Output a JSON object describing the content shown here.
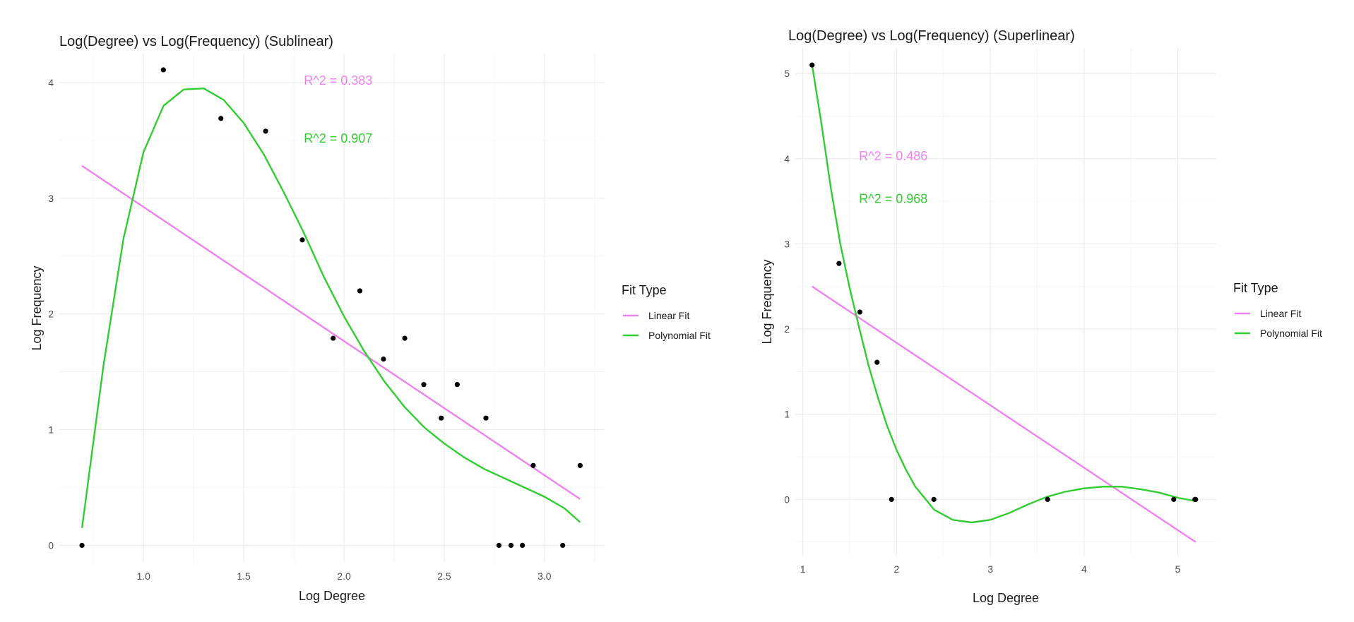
{
  "colors": {
    "linear": "#EE82EE",
    "polynomial": "#32CD32",
    "points": "#000000"
  },
  "chart_data": [
    {
      "type": "scatter",
      "title": "Log(Degree) vs Log(Frequency) (Sublinear)",
      "xlabel": "Log Degree",
      "ylabel": "Log Frequency",
      "xlim": [
        0.58,
        3.3
      ],
      "ylim": [
        -0.15,
        4.25
      ],
      "x_ticks": [
        1.0,
        1.5,
        2.0,
        2.5,
        3.0
      ],
      "x_tick_labels": [
        "1.0",
        "1.5",
        "2.0",
        "2.5",
        "3.0"
      ],
      "y_ticks": [
        0,
        1,
        2,
        3,
        4
      ],
      "y_tick_labels": [
        "0",
        "1",
        "2",
        "3",
        "4"
      ],
      "grid": true,
      "legend_position": "right",
      "legend": {
        "title": "Fit Type",
        "entries": [
          "Linear Fit",
          "Polynomial Fit"
        ]
      },
      "points": [
        [
          0.693,
          0.0
        ],
        [
          1.099,
          4.11
        ],
        [
          1.386,
          3.69
        ],
        [
          1.609,
          3.58
        ],
        [
          1.792,
          2.64
        ],
        [
          1.946,
          1.79
        ],
        [
          2.079,
          2.2
        ],
        [
          2.197,
          1.61
        ],
        [
          2.303,
          1.79
        ],
        [
          2.398,
          1.39
        ],
        [
          2.485,
          1.1
        ],
        [
          2.565,
          1.39
        ],
        [
          2.708,
          1.1
        ],
        [
          2.773,
          0.0
        ],
        [
          2.833,
          0.0
        ],
        [
          2.89,
          0.0
        ],
        [
          2.944,
          0.69
        ],
        [
          3.091,
          0.0
        ],
        [
          3.178,
          0.69
        ]
      ],
      "series": [
        {
          "name": "Linear Fit",
          "x": [
            0.693,
            3.178
          ],
          "y": [
            3.28,
            0.4
          ]
        },
        {
          "name": "Polynomial Fit",
          "x": [
            0.693,
            0.8,
            0.9,
            1.0,
            1.1,
            1.2,
            1.3,
            1.4,
            1.5,
            1.6,
            1.7,
            1.8,
            1.9,
            2.0,
            2.1,
            2.2,
            2.3,
            2.4,
            2.5,
            2.6,
            2.7,
            2.8,
            2.9,
            3.0,
            3.1,
            3.178
          ],
          "y": [
            0.15,
            1.55,
            2.65,
            3.4,
            3.8,
            3.94,
            3.95,
            3.85,
            3.65,
            3.38,
            3.05,
            2.7,
            2.32,
            1.98,
            1.68,
            1.42,
            1.2,
            1.02,
            0.88,
            0.76,
            0.66,
            0.58,
            0.5,
            0.42,
            0.32,
            0.2
          ]
        }
      ],
      "annotations": [
        {
          "text": "R^2 =  0.383",
          "x": 1.8,
          "y": 3.98,
          "series": "Linear Fit"
        },
        {
          "text": "R^2 =  0.907",
          "x": 1.8,
          "y": 3.48,
          "series": "Polynomial Fit"
        }
      ]
    },
    {
      "type": "scatter",
      "title": "Log(Degree) vs Log(Frequency) (Superlinear)",
      "xlabel": "Log Degree",
      "ylabel": "Log Frequency",
      "xlim": [
        0.92,
        5.41
      ],
      "ylim": [
        -0.66,
        5.3
      ],
      "x_ticks": [
        1,
        2,
        3,
        4,
        5
      ],
      "x_tick_labels": [
        "1",
        "2",
        "3",
        "4",
        "5"
      ],
      "y_ticks": [
        0,
        1,
        2,
        3,
        4,
        5
      ],
      "y_tick_labels": [
        "0",
        "1",
        "2",
        "3",
        "4",
        "5"
      ],
      "grid": true,
      "legend_position": "right",
      "legend": {
        "title": "Fit Type",
        "entries": [
          "Linear Fit",
          "Polynomial Fit"
        ]
      },
      "points": [
        [
          1.099,
          5.1
        ],
        [
          1.386,
          2.77
        ],
        [
          1.609,
          2.2
        ],
        [
          1.792,
          1.61
        ],
        [
          1.946,
          0.0
        ],
        [
          2.398,
          0.0
        ],
        [
          3.611,
          0.0
        ],
        [
          4.956,
          0.0
        ],
        [
          5.182,
          0.0
        ],
        [
          5.19,
          0.0
        ]
      ],
      "series": [
        {
          "name": "Linear Fit",
          "x": [
            1.099,
            5.19
          ],
          "y": [
            2.5,
            -0.5
          ]
        },
        {
          "name": "Polynomial Fit",
          "x": [
            1.099,
            1.2,
            1.3,
            1.4,
            1.5,
            1.6,
            1.7,
            1.8,
            1.9,
            2.0,
            2.1,
            2.2,
            2.4,
            2.6,
            2.8,
            3.0,
            3.2,
            3.4,
            3.6,
            3.8,
            4.0,
            4.2,
            4.4,
            4.6,
            4.8,
            5.0,
            5.19
          ],
          "y": [
            5.1,
            4.4,
            3.65,
            3.0,
            2.48,
            2.02,
            1.58,
            1.2,
            0.86,
            0.58,
            0.35,
            0.15,
            -0.12,
            -0.24,
            -0.27,
            -0.24,
            -0.16,
            -0.06,
            0.03,
            0.09,
            0.13,
            0.15,
            0.15,
            0.12,
            0.08,
            0.02,
            -0.02
          ]
        }
      ],
      "annotations": [
        {
          "text": "R^2 =  0.486",
          "x": 1.6,
          "y": 3.98,
          "series": "Linear Fit"
        },
        {
          "text": "R^2 =  0.968",
          "x": 1.6,
          "y": 3.48,
          "series": "Polynomial Fit"
        }
      ]
    }
  ]
}
